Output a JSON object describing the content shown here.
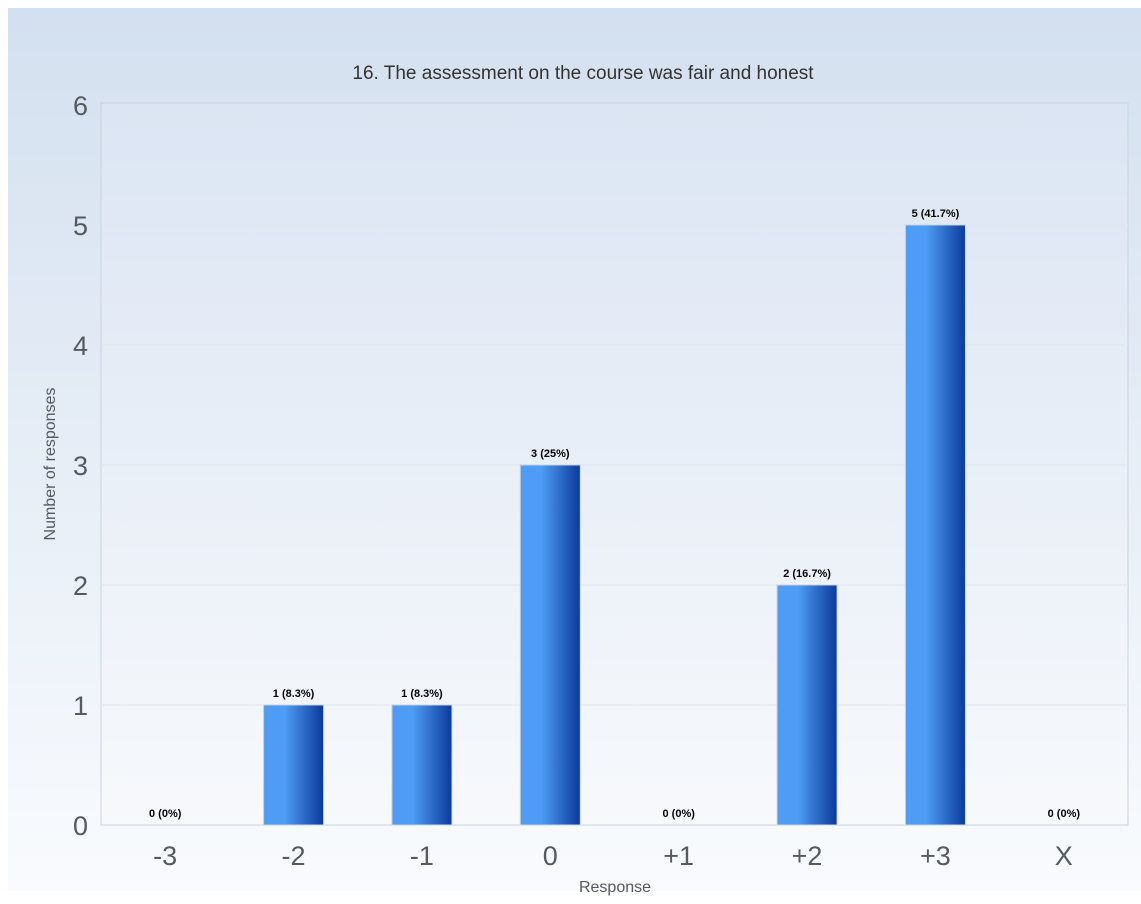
{
  "chart_data": {
    "type": "bar",
    "title": "16. The assessment on the course was fair and honest",
    "xlabel": "Response",
    "ylabel": "Number of responses",
    "categories": [
      "-3",
      "-2",
      "-1",
      "0",
      "+1",
      "+2",
      "+3",
      "X"
    ],
    "values": [
      0,
      1,
      1,
      3,
      0,
      2,
      5,
      0
    ],
    "data_labels": [
      "0 (0%)",
      "1 (8.3%)",
      "1 (8.3%)",
      "3 (25%)",
      "0 (0%)",
      "2 (16.7%)",
      "5 (41.7%)",
      "0 (0%)"
    ],
    "ylim": [
      0,
      6
    ],
    "yticks": [
      "0",
      "1",
      "2",
      "3",
      "4",
      "5",
      "6"
    ],
    "grid": true,
    "legend": "none"
  },
  "colors": {
    "background_top": "#d3e0ef",
    "background_bottom": "#f9fbfe",
    "plot_background_top": "#dbe5f3",
    "plot_background_bottom": "#f7f9fc",
    "bar_dark": "#0a3a9a",
    "bar_light": "#4e9cf5",
    "gridline": "#dfe6ee",
    "axis_text": "#555a60",
    "title_text": "#333333",
    "label_text": "#000000"
  }
}
